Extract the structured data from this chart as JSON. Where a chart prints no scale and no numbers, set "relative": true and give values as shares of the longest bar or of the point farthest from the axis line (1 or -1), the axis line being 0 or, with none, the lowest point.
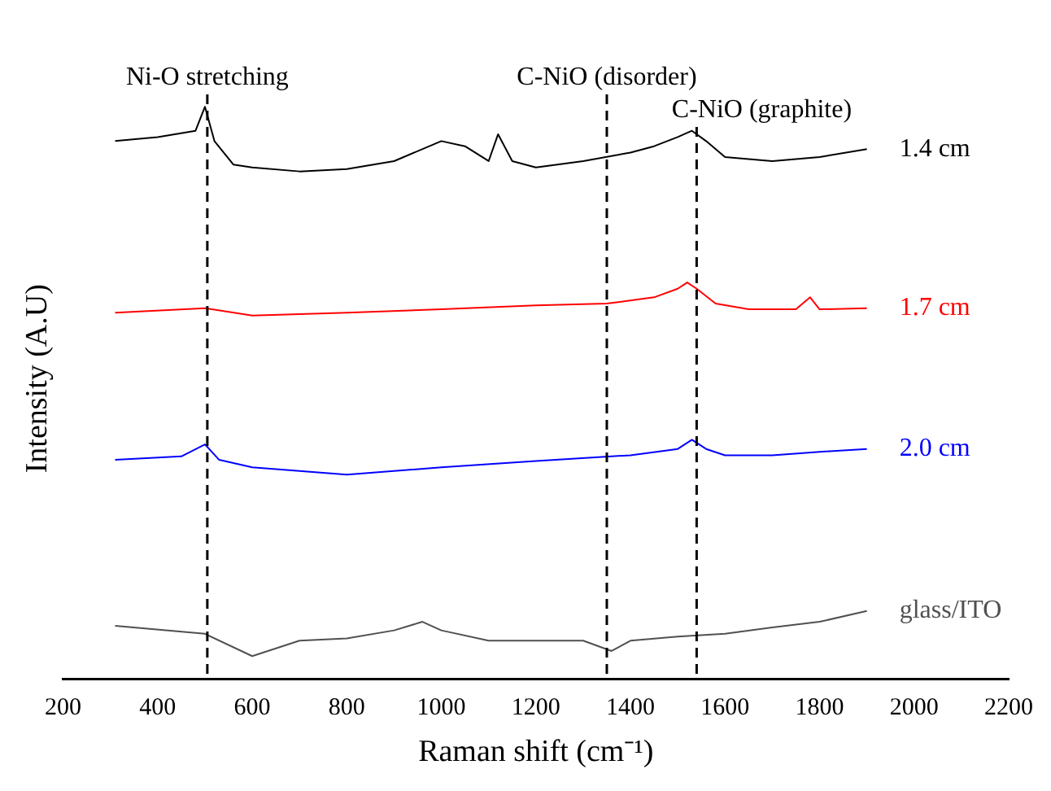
{
  "chart_data": {
    "type": "line",
    "relative": true,
    "xlabel": "Raman shift (cm⁻¹)",
    "ylabel": "Intensity (A.U)",
    "xlim": [
      200,
      2200
    ],
    "xticks": [
      200,
      400,
      600,
      800,
      1000,
      1200,
      1400,
      1600,
      1800,
      2000,
      2200
    ],
    "grid": false,
    "legend": false,
    "marker": "none",
    "line_style": "solid",
    "series": [
      {
        "name": "1.4 cm",
        "color": "#000000",
        "x": [
          310,
          400,
          480,
          500,
          520,
          560,
          600,
          700,
          800,
          900,
          1000,
          1050,
          1100,
          1120,
          1150,
          1200,
          1300,
          1400,
          1450,
          1500,
          1530,
          1560,
          1600,
          1700,
          1800,
          1900
        ],
        "values": [
          0.94,
          0.947,
          0.958,
          1.0,
          0.94,
          0.899,
          0.894,
          0.887,
          0.891,
          0.905,
          0.94,
          0.931,
          0.905,
          0.952,
          0.905,
          0.894,
          0.905,
          0.92,
          0.931,
          0.947,
          0.958,
          0.94,
          0.912,
          0.905,
          0.912,
          0.926
        ]
      },
      {
        "name": "1.7 cm",
        "color": "#ff0000",
        "x": [
          310,
          500,
          600,
          800,
          1000,
          1200,
          1350,
          1450,
          1500,
          1520,
          1540,
          1580,
          1650,
          1750,
          1780,
          1800,
          1900
        ],
        "values": [
          0.64,
          0.648,
          0.635,
          0.64,
          0.646,
          0.653,
          0.656,
          0.667,
          0.682,
          0.693,
          0.682,
          0.656,
          0.646,
          0.646,
          0.667,
          0.646,
          0.648
        ]
      },
      {
        "name": "2.0 cm",
        "color": "#0000ff",
        "x": [
          310,
          450,
          500,
          530,
          600,
          800,
          1000,
          1200,
          1400,
          1500,
          1530,
          1560,
          1600,
          1700,
          1800,
          1900
        ],
        "values": [
          0.383,
          0.389,
          0.41,
          0.383,
          0.37,
          0.357,
          0.37,
          0.381,
          0.391,
          0.402,
          0.418,
          0.402,
          0.391,
          0.391,
          0.397,
          0.402
        ]
      },
      {
        "name": "glass/ITO",
        "color": "#505050",
        "x": [
          310,
          500,
          600,
          700,
          800,
          900,
          960,
          1000,
          1100,
          1200,
          1300,
          1360,
          1400,
          1500,
          1600,
          1700,
          1800,
          1900
        ],
        "values": [
          0.093,
          0.079,
          0.04,
          0.067,
          0.071,
          0.085,
          0.1,
          0.085,
          0.067,
          0.067,
          0.067,
          0.049,
          0.067,
          0.074,
          0.079,
          0.09,
          0.1,
          0.119
        ]
      }
    ],
    "ref_lines": [
      {
        "axis": "x",
        "value": 505,
        "label": "Ni-O stretching",
        "line_style": "dashed"
      },
      {
        "axis": "x",
        "value": 1350,
        "label": "C-NiO (disorder)",
        "line_style": "dashed"
      },
      {
        "axis": "x",
        "value": 1540,
        "label": "C-NiO (graphite)",
        "line_style": "dashed"
      }
    ]
  }
}
